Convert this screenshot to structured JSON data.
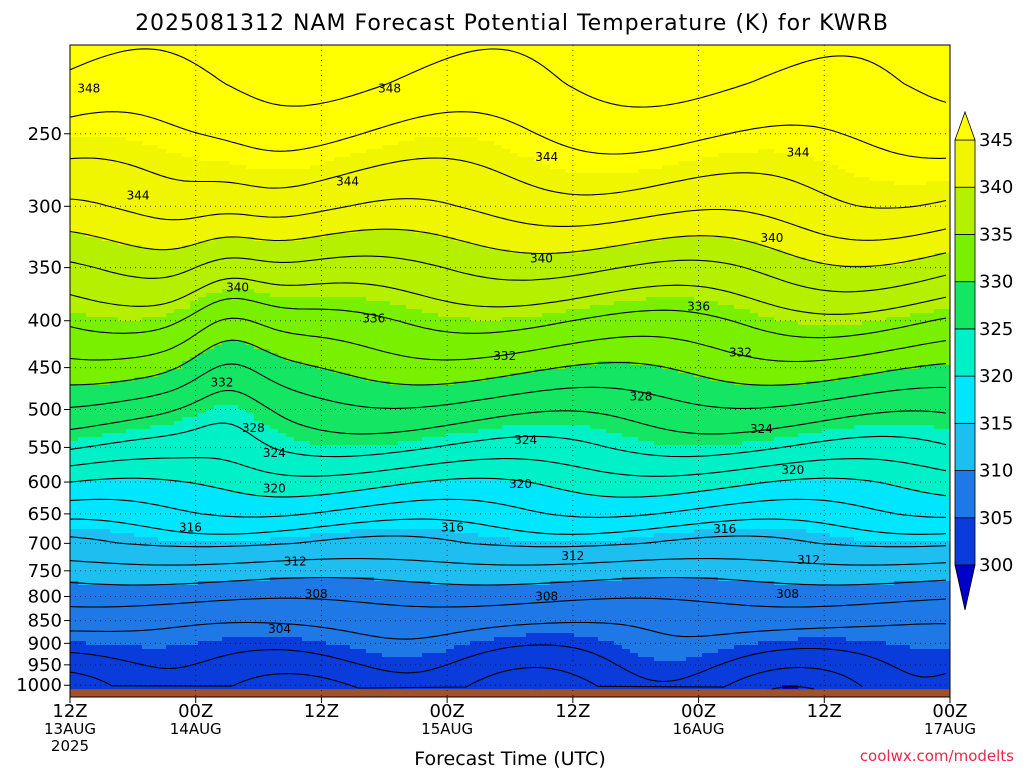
{
  "title": "2025081312 NAM Forecast Potential Temperature (K) for KWRB",
  "credit": "coolwx.com/modelts",
  "credit_color": "#e8284a",
  "ground_color": "#a0522d",
  "chart_data": {
    "type": "heatmap",
    "title": "2025081312 NAM Forecast Potential Temperature (K) for KWRB",
    "xlabel": "Forecast Time (UTC)",
    "ylabel": "",
    "x_ticks": [
      {
        "hours": 0,
        "lines": [
          "12Z",
          "13AUG",
          "2025"
        ]
      },
      {
        "hours": 12,
        "lines": [
          "00Z",
          "14AUG"
        ]
      },
      {
        "hours": 24,
        "lines": [
          "12Z"
        ]
      },
      {
        "hours": 36,
        "lines": [
          "00Z",
          "15AUG"
        ]
      },
      {
        "hours": 48,
        "lines": [
          "12Z"
        ]
      },
      {
        "hours": 60,
        "lines": [
          "00Z",
          "16AUG"
        ]
      },
      {
        "hours": 72,
        "lines": [
          "12Z"
        ]
      },
      {
        "hours": 84,
        "lines": [
          "00Z",
          "17AUG"
        ]
      }
    ],
    "x_range_hours": [
      0,
      84
    ],
    "y_axis": "pressure (hPa), log scale, reversed",
    "y_range": [
      1030,
      200
    ],
    "y_ticks": [
      250,
      300,
      350,
      400,
      450,
      500,
      550,
      600,
      650,
      700,
      750,
      800,
      850,
      900,
      950,
      1000
    ],
    "grid": true,
    "surface_pressure": 1010,
    "colorbar": {
      "levels": [
        300,
        305,
        310,
        315,
        320,
        325,
        330,
        335,
        340,
        345
      ],
      "colors": [
        "#0000c8",
        "#0a3cdc",
        "#1e78e6",
        "#1ebef0",
        "#00e6ff",
        "#00f0c8",
        "#14e664",
        "#78f000",
        "#b4f000",
        "#f0f500",
        "#ffff00"
      ],
      "extend": "both",
      "placement": "right"
    },
    "profile": {
      "pressure": [
        1000,
        950,
        900,
        850,
        800,
        750,
        700,
        650,
        600,
        550,
        500,
        450,
        400,
        350,
        300,
        250,
        220
      ],
      "theta": [
        302,
        303.5,
        305,
        306.5,
        308.5,
        311,
        314,
        317.5,
        320.5,
        324,
        327,
        330.5,
        334,
        338,
        342.5,
        346,
        348
      ]
    },
    "contour_interval": 2,
    "contour_labels": [
      {
        "hours": 1.8,
        "p": 223,
        "value": "348"
      },
      {
        "hours": 30.5,
        "p": 223,
        "value": "348"
      },
      {
        "hours": 69.5,
        "p": 262,
        "value": "344"
      },
      {
        "hours": 45.5,
        "p": 265,
        "value": "344"
      },
      {
        "hours": 26.5,
        "p": 282,
        "value": "344"
      },
      {
        "hours": 6.5,
        "p": 292,
        "value": "344"
      },
      {
        "hours": 67,
        "p": 325,
        "value": "340"
      },
      {
        "hours": 45,
        "p": 342,
        "value": "340"
      },
      {
        "hours": 16,
        "p": 368,
        "value": "340"
      },
      {
        "hours": 60,
        "p": 386,
        "value": "336"
      },
      {
        "hours": 29,
        "p": 398,
        "value": "336"
      },
      {
        "hours": 64,
        "p": 433,
        "value": "332"
      },
      {
        "hours": 41.5,
        "p": 437,
        "value": "332"
      },
      {
        "hours": 14.5,
        "p": 467,
        "value": "332"
      },
      {
        "hours": 54.5,
        "p": 484,
        "value": "328"
      },
      {
        "hours": 17.5,
        "p": 524,
        "value": "328"
      },
      {
        "hours": 66,
        "p": 525,
        "value": "324"
      },
      {
        "hours": 43.5,
        "p": 540,
        "value": "324"
      },
      {
        "hours": 19.5,
        "p": 558,
        "value": "324"
      },
      {
        "hours": 69,
        "p": 582,
        "value": "320"
      },
      {
        "hours": 43,
        "p": 603,
        "value": "320"
      },
      {
        "hours": 19.5,
        "p": 610,
        "value": "320"
      },
      {
        "hours": 11.5,
        "p": 673,
        "value": "316"
      },
      {
        "hours": 36.5,
        "p": 673,
        "value": "316"
      },
      {
        "hours": 62.5,
        "p": 675,
        "value": "316"
      },
      {
        "hours": 48,
        "p": 723,
        "value": "312"
      },
      {
        "hours": 21.5,
        "p": 733,
        "value": "312"
      },
      {
        "hours": 70.5,
        "p": 730,
        "value": "312"
      },
      {
        "hours": 23.5,
        "p": 795,
        "value": "308"
      },
      {
        "hours": 45.5,
        "p": 800,
        "value": "308"
      },
      {
        "hours": 68.5,
        "p": 795,
        "value": "308"
      },
      {
        "hours": 20,
        "p": 868,
        "value": "304"
      }
    ]
  }
}
